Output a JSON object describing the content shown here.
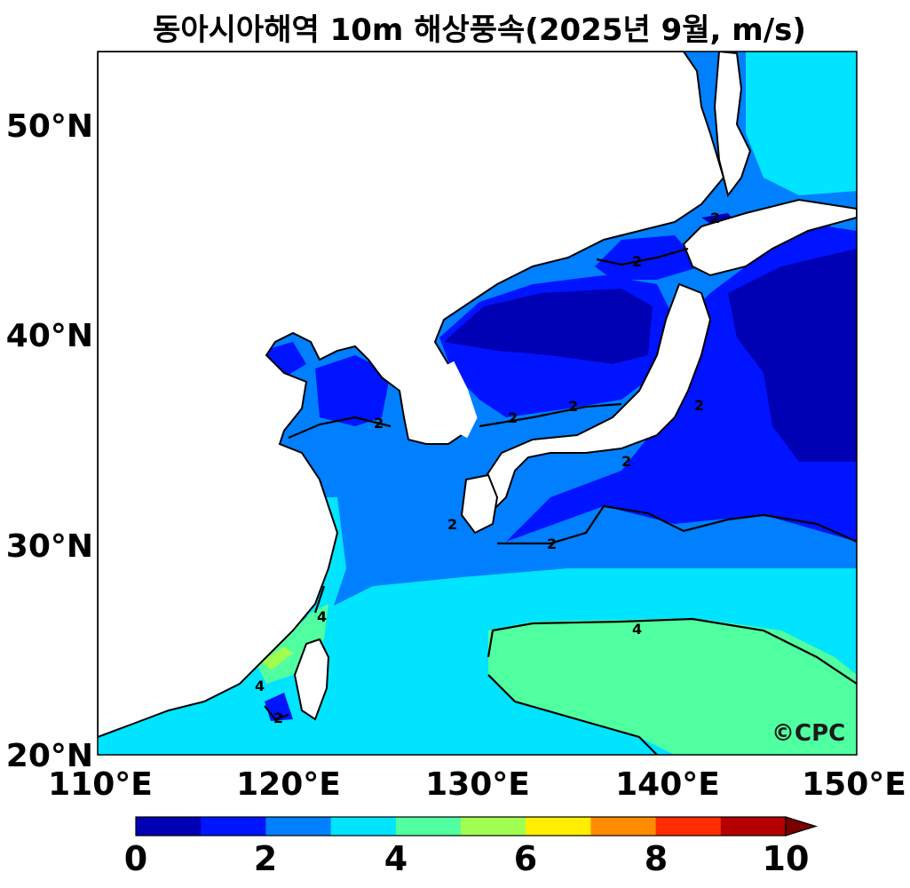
{
  "title": "동아시아해역 10m 해상풍속(2025년 9월, m/s)",
  "watermark": "©CPC",
  "axes": {
    "lat_ticks": [
      "20°N",
      "30°N",
      "40°N",
      "50°N"
    ],
    "lon_ticks": [
      "110°E",
      "120°E",
      "130°E",
      "140°E",
      "150°E"
    ]
  },
  "contour_labels": [
    "2",
    "2",
    "2",
    "2",
    "2",
    "2",
    "2",
    "2",
    "2",
    "2",
    "4",
    "4",
    "4"
  ],
  "colorbar": {
    "tick_labels": [
      "0",
      "2",
      "4",
      "6",
      "8",
      "10"
    ],
    "colors": [
      "#0000b4",
      "#0014ff",
      "#0080ff",
      "#00e4ff",
      "#50ffa0",
      "#a0ff50",
      "#ffee00",
      "#ff8c00",
      "#ff2d00",
      "#b40000",
      "#7a0000"
    ],
    "min": 0,
    "max": 10,
    "extend": "max"
  },
  "colors": {
    "land": "#ffffff",
    "coast": "#000000"
  }
}
